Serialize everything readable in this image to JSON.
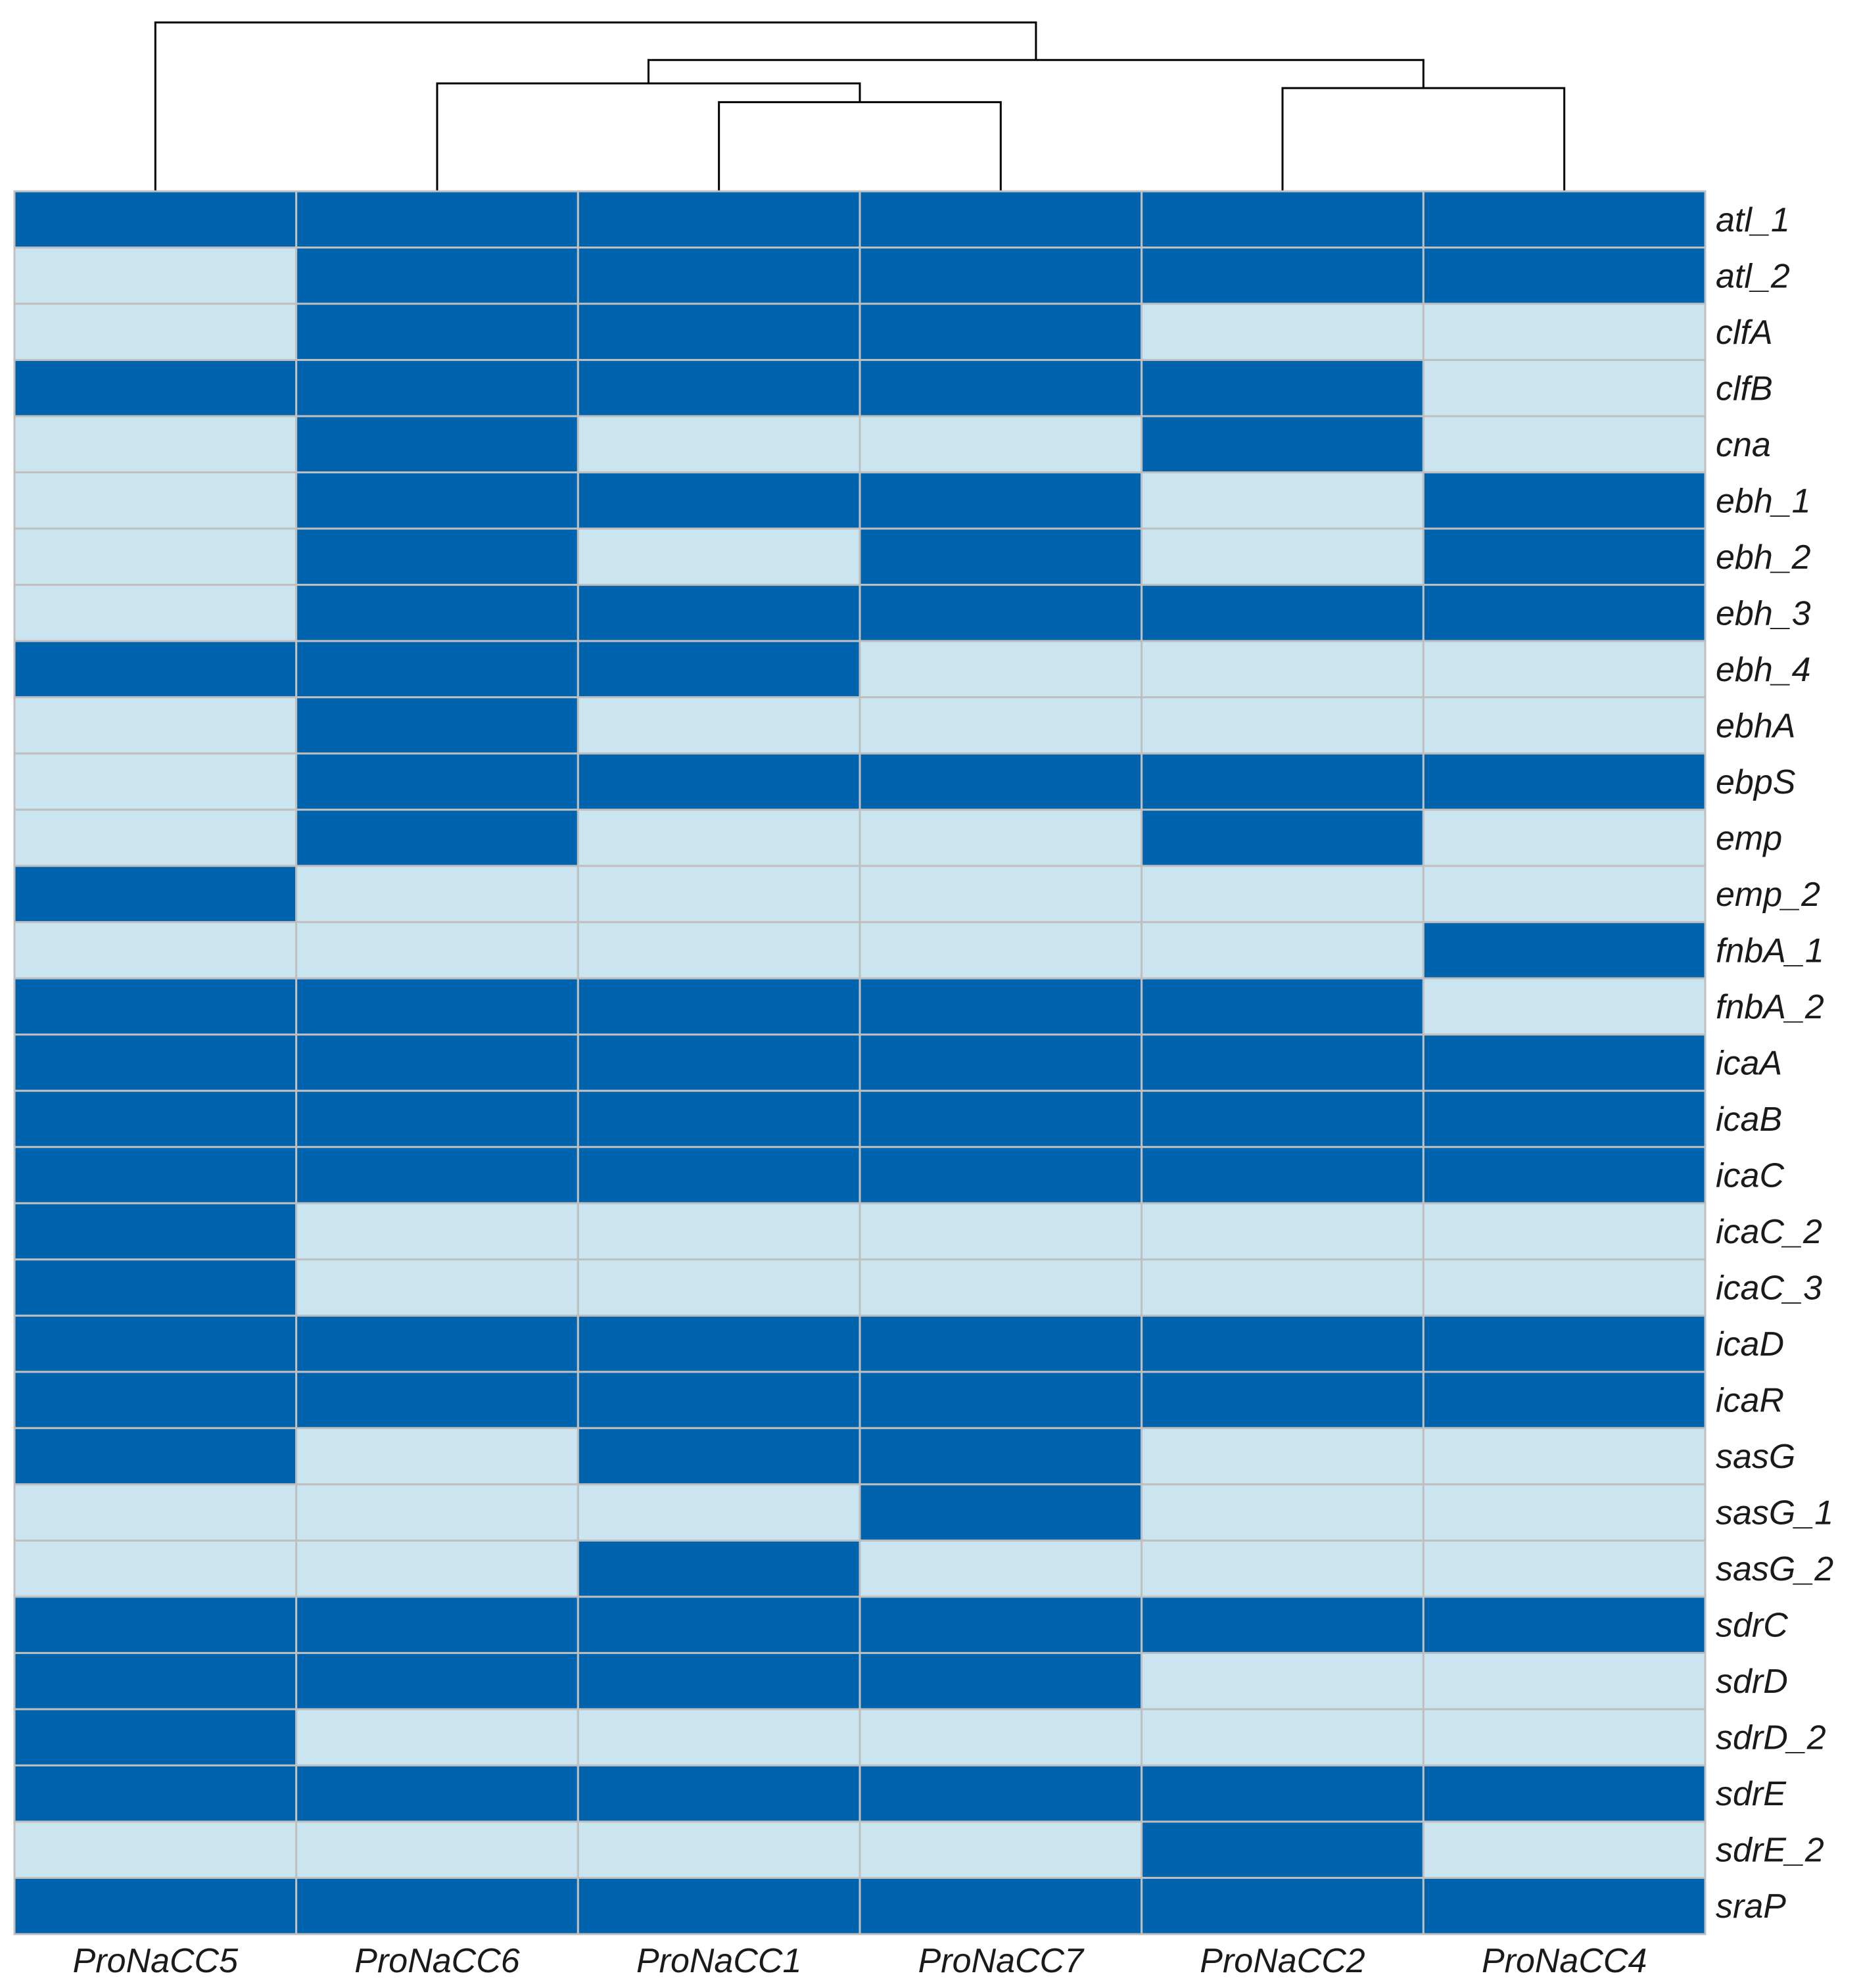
{
  "chart_data": {
    "type": "heatmap",
    "title": "",
    "xlabel": "",
    "ylabel": "",
    "columns": [
      "ProNaCC5",
      "ProNaCC6",
      "ProNaCC1",
      "ProNaCC7",
      "ProNaCC2",
      "ProNaCC4"
    ],
    "rows": [
      "atl_1",
      "atl_2",
      "clfA",
      "clfB",
      "cna",
      "ebh_1",
      "ebh_2",
      "ebh_3",
      "ebh_4",
      "ebhA",
      "ebpS",
      "emp",
      "emp_2",
      "fnbA_1",
      "fnbA_2",
      "icaA",
      "icaB",
      "icaC",
      "icaC_2",
      "icaC_3",
      "icaD",
      "icaR",
      "sasG",
      "sasG_1",
      "sasG_2",
      "sdrC",
      "sdrD",
      "sdrD_2",
      "sdrE",
      "sdrE_2",
      "sraP"
    ],
    "values": [
      [
        1,
        1,
        1,
        1,
        1,
        1
      ],
      [
        0,
        1,
        1,
        1,
        1,
        1
      ],
      [
        0,
        1,
        1,
        1,
        0,
        0
      ],
      [
        1,
        1,
        1,
        1,
        1,
        0
      ],
      [
        0,
        1,
        0,
        0,
        1,
        0
      ],
      [
        0,
        1,
        1,
        1,
        0,
        1
      ],
      [
        0,
        1,
        0,
        1,
        0,
        1
      ],
      [
        0,
        1,
        1,
        1,
        1,
        1
      ],
      [
        1,
        1,
        1,
        0,
        0,
        0
      ],
      [
        0,
        1,
        0,
        0,
        0,
        0
      ],
      [
        0,
        1,
        1,
        1,
        1,
        1
      ],
      [
        0,
        1,
        0,
        0,
        1,
        0
      ],
      [
        1,
        0,
        0,
        0,
        0,
        0
      ],
      [
        0,
        0,
        0,
        0,
        0,
        1
      ],
      [
        1,
        1,
        1,
        1,
        1,
        0
      ],
      [
        1,
        1,
        1,
        1,
        1,
        1
      ],
      [
        1,
        1,
        1,
        1,
        1,
        1
      ],
      [
        1,
        1,
        1,
        1,
        1,
        1
      ],
      [
        1,
        0,
        0,
        0,
        0,
        0
      ],
      [
        1,
        0,
        0,
        0,
        0,
        0
      ],
      [
        1,
        1,
        1,
        1,
        1,
        1
      ],
      [
        1,
        1,
        1,
        1,
        1,
        1
      ],
      [
        1,
        0,
        1,
        1,
        0,
        0
      ],
      [
        0,
        0,
        0,
        1,
        0,
        0
      ],
      [
        0,
        0,
        1,
        0,
        0,
        0
      ],
      [
        1,
        1,
        1,
        1,
        1,
        1
      ],
      [
        1,
        1,
        1,
        1,
        0,
        0
      ],
      [
        1,
        0,
        0,
        0,
        0,
        0
      ],
      [
        1,
        1,
        1,
        1,
        1,
        1
      ],
      [
        0,
        0,
        0,
        0,
        1,
        0
      ],
      [
        1,
        1,
        1,
        1,
        1,
        1
      ]
    ],
    "colors": {
      "present": "#0063ae",
      "absent": "#cbe5f0",
      "grid": "#bfbfbf"
    },
    "dendrogram": [
      [
        2,
        3,
        0.19
      ],
      [
        4,
        5,
        0.22
      ],
      [
        1,
        6,
        0.23
      ],
      [
        8,
        7,
        0.28
      ],
      [
        0,
        9,
        0.36
      ]
    ],
    "dendrogram_max_height": 0.37,
    "grid": true,
    "legend": "none"
  }
}
